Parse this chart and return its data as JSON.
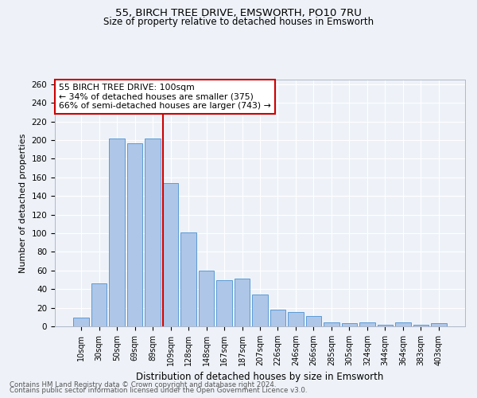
{
  "title1": "55, BIRCH TREE DRIVE, EMSWORTH, PO10 7RU",
  "title2": "Size of property relative to detached houses in Emsworth",
  "xlabel": "Distribution of detached houses by size in Emsworth",
  "ylabel": "Number of detached properties",
  "categories": [
    "10sqm",
    "30sqm",
    "50sqm",
    "69sqm",
    "89sqm",
    "109sqm",
    "128sqm",
    "148sqm",
    "167sqm",
    "187sqm",
    "207sqm",
    "226sqm",
    "246sqm",
    "266sqm",
    "285sqm",
    "305sqm",
    "324sqm",
    "344sqm",
    "364sqm",
    "383sqm",
    "403sqm"
  ],
  "values": [
    9,
    46,
    202,
    197,
    202,
    154,
    101,
    60,
    50,
    51,
    34,
    18,
    15,
    11,
    4,
    3,
    4,
    2,
    4,
    2,
    3
  ],
  "bar_color": "#aec6e8",
  "bar_edge_color": "#5b9bd5",
  "vline_color": "#cc0000",
  "annotation_title": "55 BIRCH TREE DRIVE: 100sqm",
  "annotation_line1": "← 34% of detached houses are smaller (375)",
  "annotation_line2": "66% of semi-detached houses are larger (743) →",
  "annotation_box_color": "#cc0000",
  "ylim": [
    0,
    265
  ],
  "yticks": [
    0,
    20,
    40,
    60,
    80,
    100,
    120,
    140,
    160,
    180,
    200,
    220,
    240,
    260
  ],
  "footer1": "Contains HM Land Registry data © Crown copyright and database right 2024.",
  "footer2": "Contains public sector information licensed under the Open Government Licence v3.0.",
  "bg_color": "#eef2f8",
  "grid_color": "#ffffff"
}
